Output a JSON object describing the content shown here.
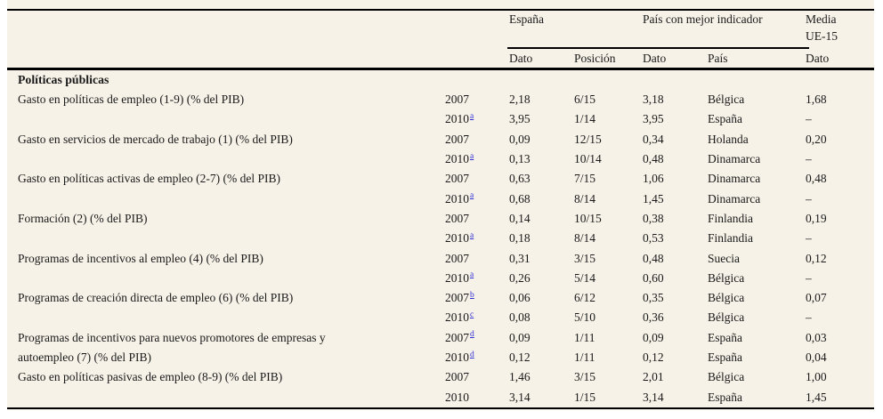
{
  "header": {
    "groups": {
      "espana": "España",
      "mejor": "País con mejor indicador",
      "media_line1": "Media",
      "media_line2": "UE-15"
    },
    "sub": {
      "espana_dato": "Dato",
      "espana_posicion": "Posición",
      "mejor_dato": "Dato",
      "mejor_pais": "País",
      "media_dato": "Dato"
    }
  },
  "section_title": "Políticas públicas",
  "rows": [
    {
      "label": "Gasto en políticas de empleo (1-9) (% del PIB)",
      "year": "2007",
      "note": "",
      "dato": "2,18",
      "posicion": "6/15",
      "mejor_dato": "3,18",
      "pais": "Bélgica",
      "media": "1,68"
    },
    {
      "label": "",
      "year": "2010",
      "note": "a",
      "dato": "3,95",
      "posicion": "1/14",
      "mejor_dato": "3,95",
      "pais": "España",
      "media": "–"
    },
    {
      "label": "Gasto en servicios de mercado de trabajo (1) (% del PIB)",
      "year": "2007",
      "note": "",
      "dato": "0,09",
      "posicion": "12/15",
      "mejor_dato": "0,34",
      "pais": "Holanda",
      "media": "0,20"
    },
    {
      "label": "",
      "year": "2010",
      "note": "a",
      "dato": "0,13",
      "posicion": "10/14",
      "mejor_dato": "0,48",
      "pais": "Dinamarca",
      "media": "–"
    },
    {
      "label": "Gasto en políticas activas de empleo (2-7) (% del PIB)",
      "year": "2007",
      "note": "",
      "dato": "0,63",
      "posicion": "7/15",
      "mejor_dato": "1,06",
      "pais": "Dinamarca",
      "media": "0,48"
    },
    {
      "label": "",
      "year": "2010",
      "note": "a",
      "dato": "0,68",
      "posicion": "8/14",
      "mejor_dato": "1,45",
      "pais": "Dinamarca",
      "media": "–"
    },
    {
      "label": "Formación (2) (% del PIB)",
      "year": "2007",
      "note": "",
      "dato": "0,14",
      "posicion": "10/15",
      "mejor_dato": "0,38",
      "pais": "Finlandia",
      "media": "0,19"
    },
    {
      "label": "",
      "year": "2010",
      "note": "a",
      "dato": "0,18",
      "posicion": "8/14",
      "mejor_dato": "0,53",
      "pais": "Finlandia",
      "media": "–"
    },
    {
      "label": "Programas de incentivos al empleo (4) (% del PIB)",
      "year": "2007",
      "note": "",
      "dato": "0,31",
      "posicion": "3/15",
      "mejor_dato": "0,48",
      "pais": "Suecia",
      "media": "0,12"
    },
    {
      "label": "",
      "year": "2010",
      "note": "a",
      "dato": "0,26",
      "posicion": "5/14",
      "mejor_dato": "0,60",
      "pais": "Bélgica",
      "media": "–"
    },
    {
      "label": "Programas de creación directa de empleo (6) (% del PIB)",
      "year": "2007",
      "note": "b",
      "dato": "0,06",
      "posicion": "6/12",
      "mejor_dato": "0,35",
      "pais": "Bélgica",
      "media": "0,07"
    },
    {
      "label": "",
      "year": "2010",
      "note": "c",
      "dato": "0,08",
      "posicion": "5/10",
      "mejor_dato": "0,36",
      "pais": "Bélgica",
      "media": "–"
    },
    {
      "label": "Programas de incentivos para nuevos promotores de empresas y",
      "year": "2007",
      "note": "d",
      "dato": "0,09",
      "posicion": "1/11",
      "mejor_dato": "0,09",
      "pais": "España",
      "media": "0,03"
    },
    {
      "label": "autoempleo (7) (% del PIB)",
      "year": "2010",
      "note": "d",
      "dato": "0,12",
      "posicion": "1/11",
      "mejor_dato": "0,12",
      "pais": "España",
      "media": "0,04"
    },
    {
      "label": "Gasto en políticas pasivas de empleo (8-9) (% del PIB)",
      "year": "2007",
      "note": "",
      "dato": "1,46",
      "posicion": "3/15",
      "mejor_dato": "2,01",
      "pais": "Bélgica",
      "media": "1,00"
    },
    {
      "label": "",
      "year": "2010",
      "note": "",
      "dato": "3,14",
      "posicion": "1/15",
      "mejor_dato": "3,14",
      "pais": "España",
      "media": "1,45"
    }
  ],
  "colors": {
    "background": "#f6f2e8",
    "text": "#1a1a1a",
    "footnote_link": "#2f2fd3",
    "rule": "#000000"
  }
}
